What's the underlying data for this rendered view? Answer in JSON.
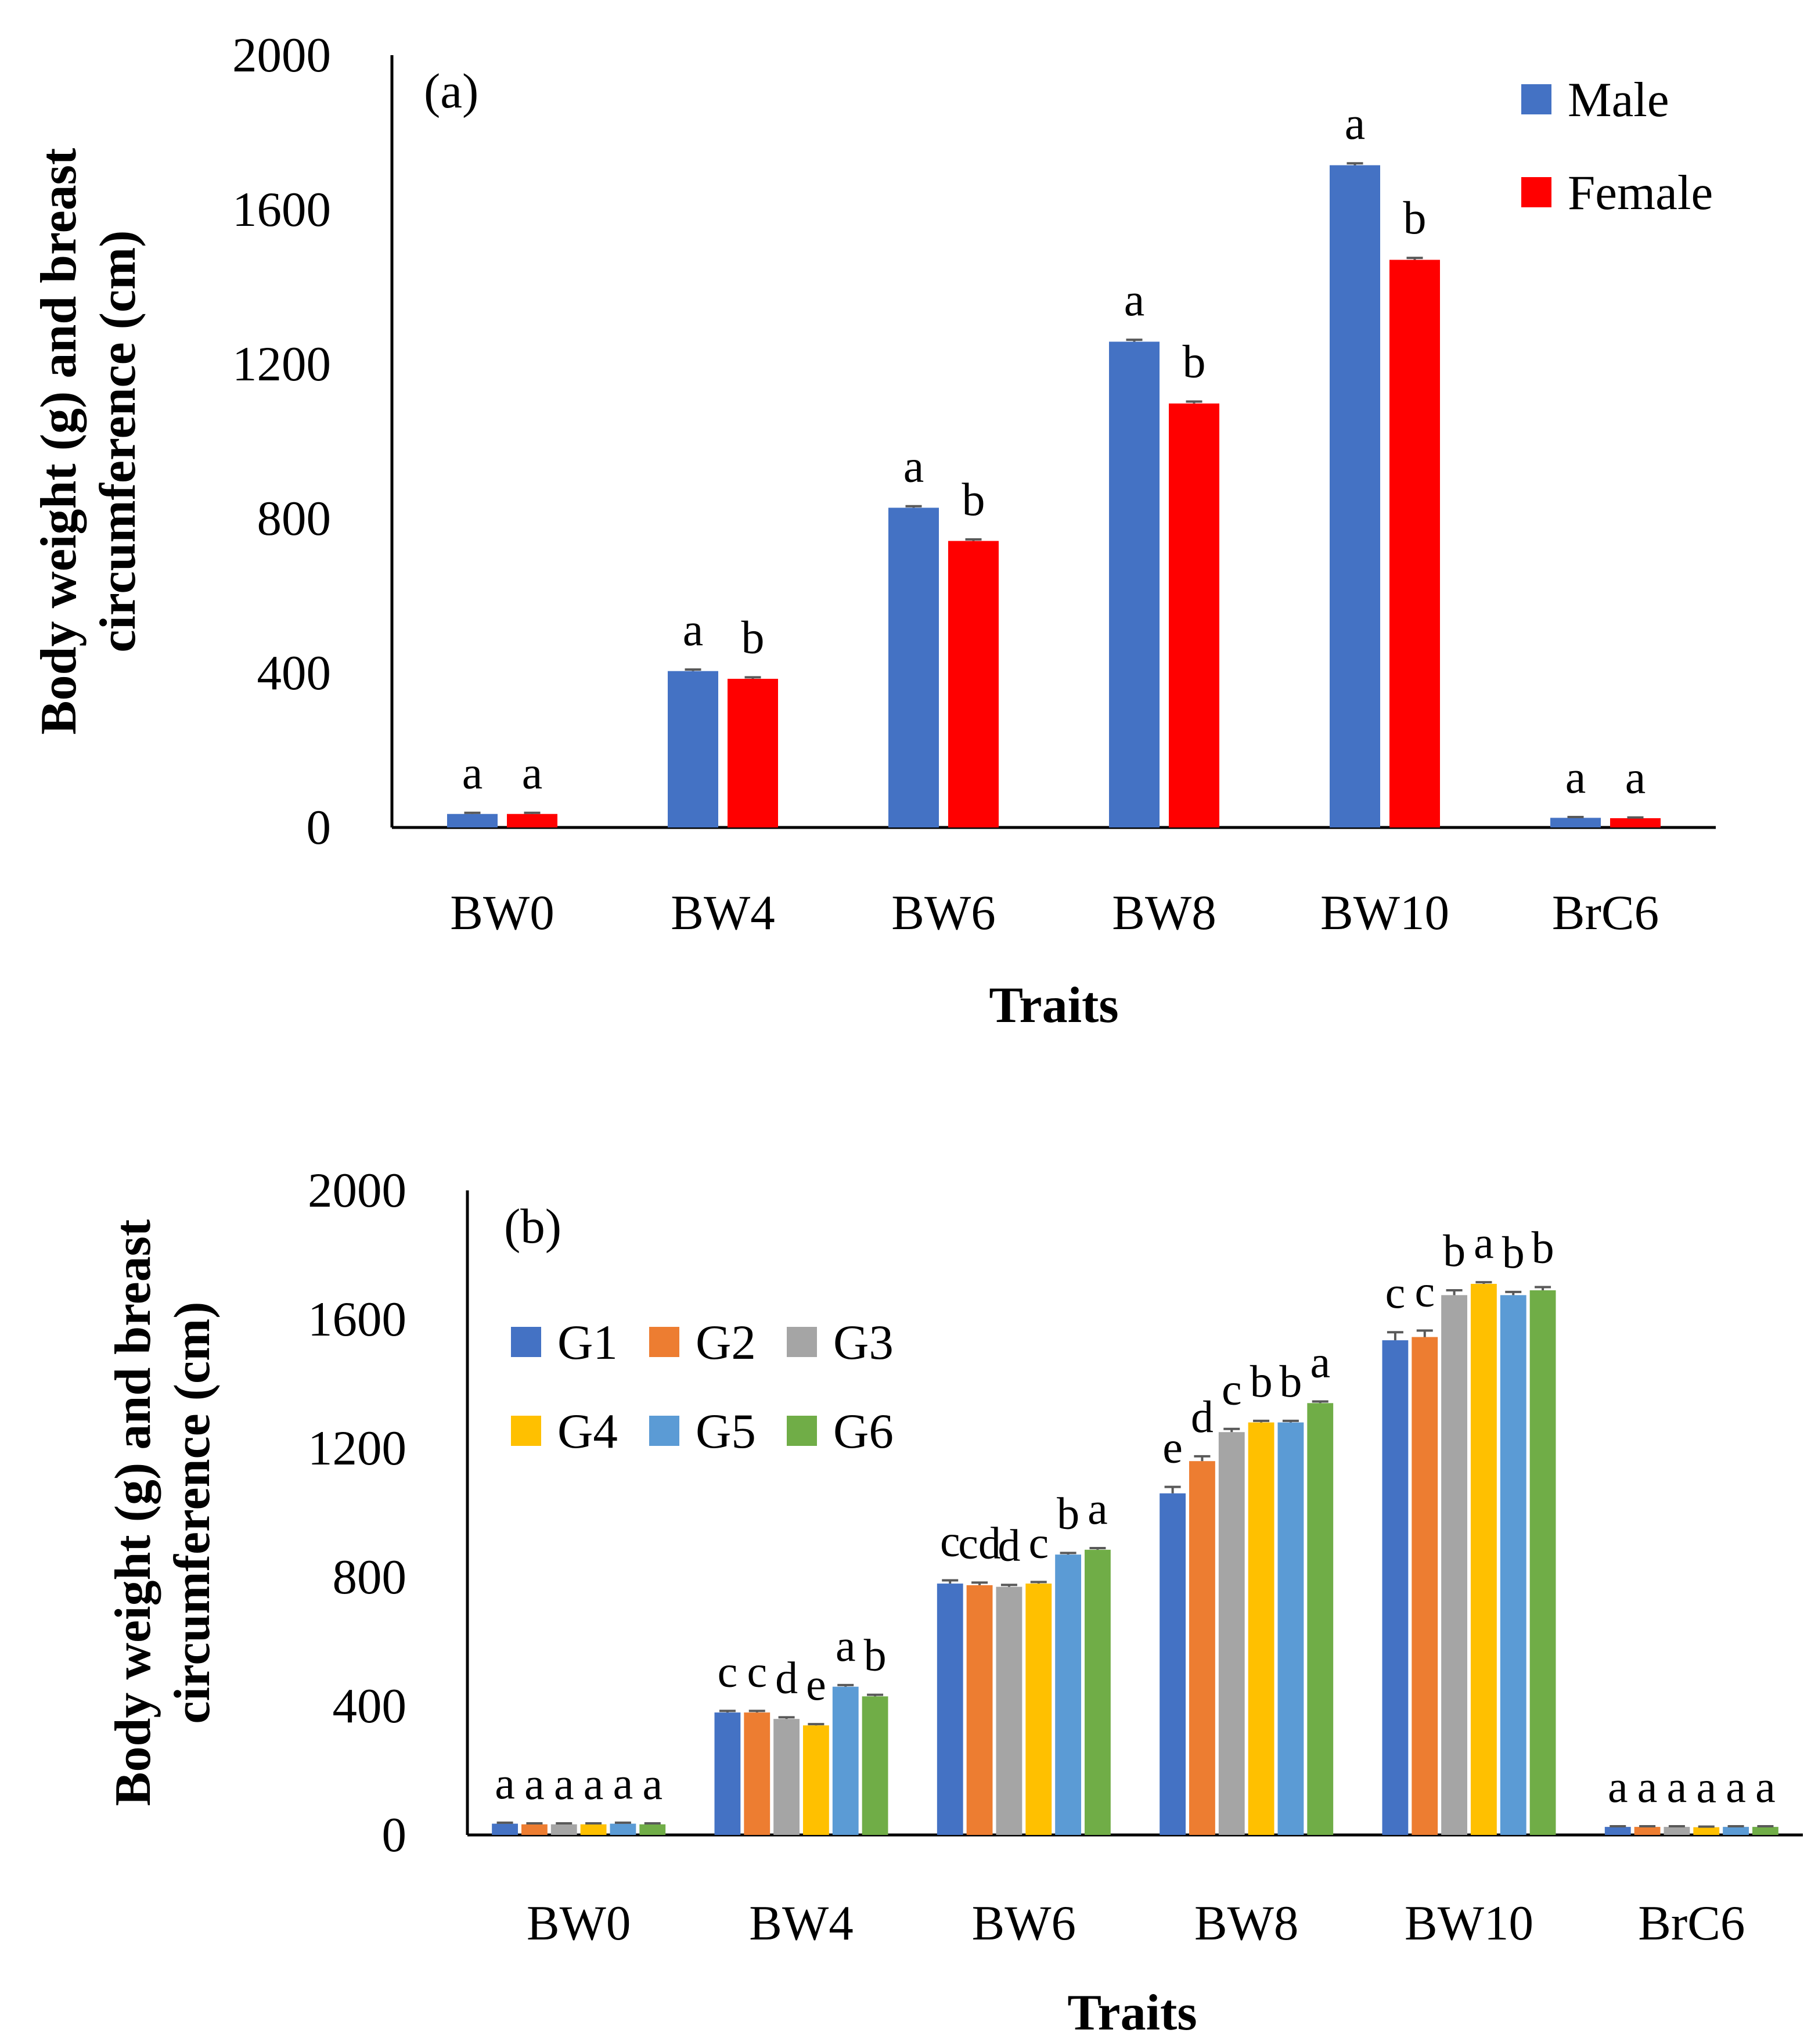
{
  "chart_data": [
    {
      "type": "bar",
      "panel_label": "(a)",
      "title": "",
      "xlabel": "Traits",
      "ylabel_lines": [
        "Body weight (g) and breast",
        "circumference (cm)"
      ],
      "ylim": [
        0,
        2000
      ],
      "yticks": [
        "0",
        "400",
        "800",
        "1200",
        "1600",
        "2000"
      ],
      "categories": [
        "BW0",
        "BW4",
        "BW6",
        "BW8",
        "BW10",
        "BrC6"
      ],
      "legend_position": "top-right",
      "series": [
        {
          "name": "Male",
          "color": "#4472C4",
          "values": [
            35,
            405,
            828,
            1258,
            1715,
            25
          ],
          "errors": [
            3,
            4,
            4,
            5,
            5,
            2
          ],
          "letters": [
            "a",
            "a",
            "a",
            "a",
            "a",
            "a"
          ]
        },
        {
          "name": "Female",
          "color": "#FF0000",
          "values": [
            35,
            385,
            742,
            1098,
            1470,
            24
          ],
          "errors": [
            3,
            4,
            4,
            5,
            5,
            2
          ],
          "letters": [
            "a",
            "b",
            "b",
            "b",
            "b",
            "a"
          ]
        }
      ]
    },
    {
      "type": "bar",
      "panel_label": "(b)",
      "title": "",
      "xlabel": "Traits",
      "ylabel_lines": [
        "Body weight (g) and breast",
        "circumference (cm)"
      ],
      "ylim": [
        0,
        2000
      ],
      "yticks": [
        "0",
        "400",
        "800",
        "1200",
        "1600",
        "2000"
      ],
      "categories": [
        "BW0",
        "BW4",
        "BW6",
        "BW8",
        "BW10",
        "BrC6"
      ],
      "legend_position": "top-left",
      "series": [
        {
          "name": "G1",
          "color": "#4472C4",
          "values": [
            35,
            380,
            780,
            1060,
            1535,
            25
          ],
          "errors": [
            3,
            5,
            10,
            20,
            25,
            2
          ],
          "letters": [
            "a",
            "c",
            "c",
            "e",
            "c",
            "a"
          ]
        },
        {
          "name": "G2",
          "color": "#ED7D31",
          "values": [
            33,
            380,
            775,
            1160,
            1545,
            25
          ],
          "errors": [
            3,
            5,
            8,
            15,
            20,
            2
          ],
          "letters": [
            "a",
            "c",
            "cd",
            "d",
            "c",
            "a"
          ]
        },
        {
          "name": "G3",
          "color": "#A5A5A5",
          "values": [
            33,
            360,
            770,
            1250,
            1675,
            25
          ],
          "errors": [
            3,
            5,
            6,
            10,
            15,
            2
          ],
          "letters": [
            "a",
            "d",
            "d",
            "c",
            "b",
            "a"
          ]
        },
        {
          "name": "G4",
          "color": "#FFC000",
          "values": [
            33,
            340,
            780,
            1280,
            1710,
            24
          ],
          "errors": [
            3,
            4,
            5,
            5,
            5,
            2
          ],
          "letters": [
            "a",
            "e",
            "c",
            "b",
            "a",
            "a"
          ]
        },
        {
          "name": "G5",
          "color": "#5B9BD5",
          "values": [
            35,
            460,
            870,
            1280,
            1675,
            25
          ],
          "errors": [
            3,
            5,
            5,
            5,
            10,
            2
          ],
          "letters": [
            "a",
            "a",
            "b",
            "b",
            "b",
            "a"
          ]
        },
        {
          "name": "G6",
          "color": "#70AD47",
          "values": [
            33,
            430,
            885,
            1340,
            1690,
            25
          ],
          "errors": [
            3,
            5,
            5,
            5,
            10,
            2
          ],
          "letters": [
            "a",
            "b",
            "a",
            "a",
            "b",
            "a"
          ]
        }
      ]
    }
  ]
}
